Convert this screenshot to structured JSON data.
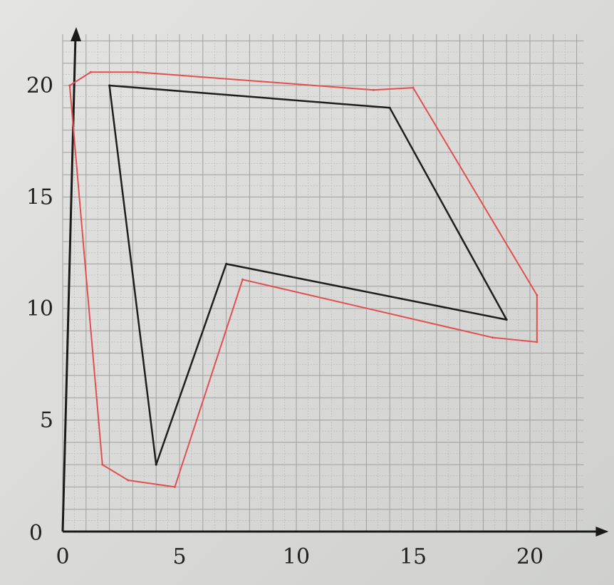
{
  "chart_data": {
    "type": "line",
    "xlim": [
      0,
      22
    ],
    "ylim": [
      0,
      22
    ],
    "x_ticks": [
      "0",
      "5",
      "10",
      "15",
      "20"
    ],
    "y_ticks": [
      "0",
      "5",
      "10",
      "15",
      "20"
    ],
    "grid": true,
    "series": [
      {
        "color": "#1e1e1e",
        "closed": true,
        "points": [
          [
            2,
            20
          ],
          [
            14,
            19
          ],
          [
            19,
            9.5
          ],
          [
            7,
            12
          ],
          [
            4,
            3
          ]
        ]
      },
      {
        "color": "#e05050",
        "closed": true,
        "points": [
          [
            0.3,
            20
          ],
          [
            1.2,
            20.6
          ],
          [
            3.2,
            20.6
          ],
          [
            13.3,
            19.8
          ],
          [
            15,
            19.9
          ],
          [
            20.3,
            10.6
          ],
          [
            20.3,
            8.5
          ],
          [
            18.4,
            8.7
          ],
          [
            7.7,
            11.3
          ],
          [
            4.8,
            2
          ],
          [
            2.8,
            2.3
          ],
          [
            1.7,
            3
          ],
          [
            0.3,
            20
          ]
        ]
      }
    ]
  }
}
